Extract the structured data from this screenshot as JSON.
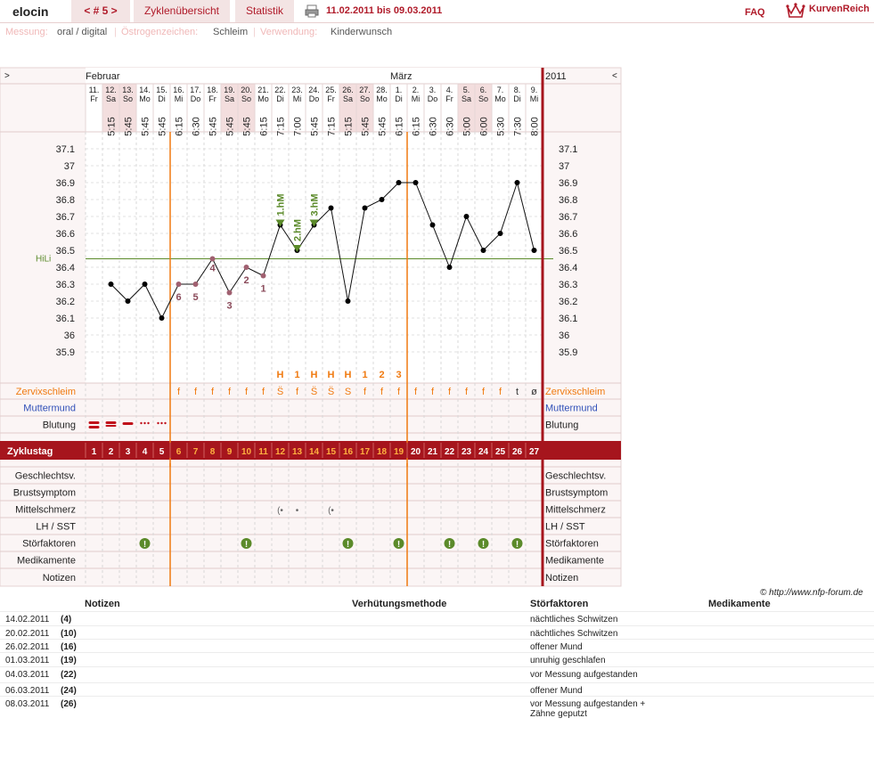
{
  "header": {
    "username": "elocin",
    "cycle_nav": "< # 5 >",
    "tab_overview": "Zyklenübersicht",
    "tab_stats": "Statistik",
    "date_range": "11.02.2011 bis 09.03.2011",
    "faq": "FAQ",
    "brand": "KurvenReich"
  },
  "infobar": {
    "measure_label": "Messung:",
    "measure_value": "oral / digital",
    "estrogen_label": "Östrogenzeichen:",
    "estrogen_value": "Schleim",
    "use_label": "Verwendung:",
    "use_value": "Kinderwunsch"
  },
  "colors": {
    "accent": "#a6151d",
    "orange": "#f07a10",
    "green": "#5b8a2a",
    "blue": "#3050b8",
    "purple": "#8a4a5a"
  },
  "chart_data": {
    "type": "line",
    "nav_left": ">",
    "nav_right": "<",
    "year": "2011",
    "month_labels": [
      {
        "label": "Februar",
        "col": 0
      },
      {
        "label": "März",
        "col": 18
      }
    ],
    "days": [
      "11.",
      "12.",
      "13.",
      "14.",
      "15.",
      "16.",
      "17.",
      "18.",
      "19.",
      "20.",
      "21.",
      "22.",
      "23.",
      "24.",
      "25.",
      "26.",
      "27.",
      "28.",
      "1.",
      "2.",
      "3.",
      "4.",
      "5.",
      "6.",
      "7.",
      "8.",
      "9."
    ],
    "weekdays": [
      "Fr",
      "Sa",
      "So",
      "Mo",
      "Di",
      "Mi",
      "Do",
      "Fr",
      "Sa",
      "So",
      "Mo",
      "Di",
      "Mi",
      "Do",
      "Fr",
      "Sa",
      "So",
      "Mo",
      "Di",
      "Mi",
      "Do",
      "Fr",
      "Sa",
      "So",
      "Mo",
      "Di",
      "Mi"
    ],
    "times": [
      "",
      "5:15",
      "5:45",
      "5:45",
      "5:45",
      "6:15",
      "6:30",
      "5:45",
      "5:45",
      "5:45",
      "6:15",
      "7:15",
      "7:00",
      "5:45",
      "7:15",
      "5:15",
      "5:45",
      "5:45",
      "6:15",
      "6:15",
      "6:30",
      "6:30",
      "5:00",
      "6:00",
      "5:30",
      "7:30",
      "8:00"
    ],
    "shaded_cols": [
      1,
      2,
      8,
      9,
      15,
      16,
      22,
      23
    ],
    "y_ticks": [
      "37.1",
      "37",
      "36.9",
      "36.8",
      "36.7",
      "36.6",
      "36.5",
      "36.4",
      "36.3",
      "36.2",
      "36.1",
      "36",
      "35.9"
    ],
    "ylim": [
      35.9,
      37.1
    ],
    "temperatures": [
      null,
      36.3,
      36.2,
      36.3,
      36.1,
      36.3,
      36.3,
      36.45,
      36.25,
      36.4,
      36.35,
      36.65,
      36.5,
      36.65,
      36.75,
      36.2,
      36.75,
      36.8,
      36.9,
      36.9,
      36.65,
      36.4,
      36.7,
      36.5,
      36.6,
      36.9,
      36.5
    ],
    "hili_value": 36.45,
    "hili_label": "HiLi",
    "lower_marks": [
      {
        "col": 5,
        "label": "6"
      },
      {
        "col": 6,
        "label": "5"
      },
      {
        "col": 7,
        "label": "4"
      },
      {
        "col": 8,
        "label": "3"
      },
      {
        "col": 9,
        "label": "2"
      },
      {
        "col": 10,
        "label": "1"
      }
    ],
    "hm_marks": [
      {
        "col": 11,
        "label": "1.hM"
      },
      {
        "col": 12,
        "label": "2.hM"
      },
      {
        "col": 13,
        "label": "3.hM"
      }
    ],
    "ovulation_cols": [
      5,
      19
    ],
    "mucus_top": [
      "",
      "",
      "",
      "",
      "",
      "",
      "",
      "",
      "",
      "",
      "",
      "H",
      "1",
      "H",
      "H",
      "H",
      "1",
      "2",
      "3",
      "",
      "",
      "",
      "",
      "",
      "",
      "",
      ""
    ],
    "mucus": [
      "",
      "",
      "",
      "",
      "",
      "f",
      "f",
      "f",
      "f",
      "f",
      "f",
      "S̈",
      "f",
      "S̈",
      "S̈",
      "S",
      "f",
      "f",
      "f",
      "f",
      "f",
      "f",
      "f",
      "f",
      "f",
      "t",
      "ø"
    ],
    "cycle_days": [
      "1",
      "2",
      "3",
      "4",
      "5",
      "6",
      "7",
      "8",
      "9",
      "10",
      "11",
      "12",
      "13",
      "14",
      "15",
      "16",
      "17",
      "18",
      "19",
      "20",
      "21",
      "22",
      "23",
      "24",
      "25",
      "26",
      "27"
    ],
    "mittelschmerz": [
      {
        "col": 11,
        "sym": "(•"
      },
      {
        "col": 12,
        "sym": "•"
      },
      {
        "col": 14,
        "sym": "(•"
      }
    ],
    "stoerfaktoren_cols": [
      3,
      9,
      15,
      18,
      21,
      23,
      25
    ],
    "bleeding": [
      {
        "col": 0,
        "sym": "heavy"
      },
      {
        "col": 1,
        "sym": "medium"
      },
      {
        "col": 2,
        "sym": "light"
      },
      {
        "col": 3,
        "sym": "spot"
      },
      {
        "col": 4,
        "sym": "spot"
      }
    ]
  },
  "rows": {
    "cervix": "Zervixschleim",
    "mumu": "Muttermund",
    "bleed": "Blutung",
    "cycleday": "Zyklustag",
    "sex": "Geschlechtsv.",
    "breast": "Brustsymptom",
    "mittel": "Mittelschmerz",
    "lh": "LH / SST",
    "stoer": "Störfaktoren",
    "medi": "Medikamente",
    "notes": "Notizen"
  },
  "copyright": "© http://www.nfp-forum.de",
  "notes_table": {
    "headers": [
      "Notizen",
      "Verhütungsmethode",
      "Störfaktoren",
      "Medikamente"
    ],
    "rows": [
      {
        "date": "14.02.2011",
        "day": "(4)",
        "stoer": "nächtliches Schwitzen"
      },
      {
        "date": "20.02.2011",
        "day": "(10)",
        "stoer": "nächtliches Schwitzen"
      },
      {
        "date": "26.02.2011",
        "day": "(16)",
        "stoer": "offener Mund"
      },
      {
        "date": "01.03.2011",
        "day": "(19)",
        "stoer": "unruhig geschlafen"
      },
      {
        "date": "04.03.2011",
        "day": "(22)",
        "stoer": "vor Messung aufgestanden"
      },
      {
        "date": "06.03.2011",
        "day": "(24)",
        "stoer": "offener Mund"
      },
      {
        "date": "08.03.2011",
        "day": "(26)",
        "stoer": "vor Messung aufgestanden + Zähne geputzt"
      }
    ]
  }
}
